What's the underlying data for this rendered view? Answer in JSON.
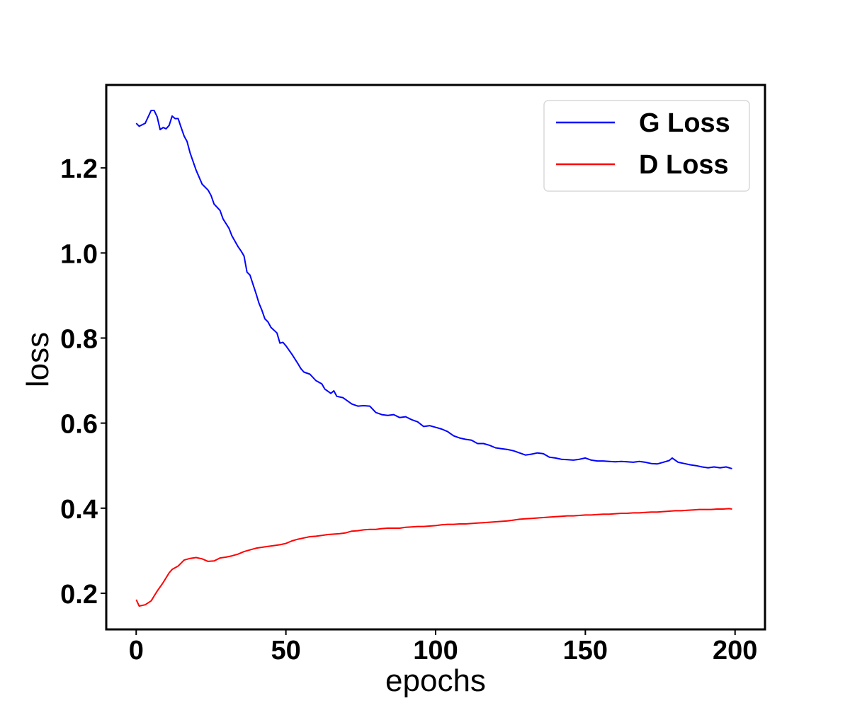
{
  "chart_data": {
    "type": "line",
    "xlabel": "epochs",
    "ylabel": "loss",
    "xlim": [
      -10,
      210
    ],
    "ylim": [
      0.115,
      1.395
    ],
    "xticks": [
      0,
      50,
      100,
      150,
      200
    ],
    "xtick_labels": [
      "0",
      "50",
      "100",
      "150",
      "200"
    ],
    "yticks": [
      0.2,
      0.4,
      0.6,
      0.8,
      1.0,
      1.2
    ],
    "ytick_labels": [
      "0.2",
      "0.4",
      "0.6",
      "0.8",
      "1.0",
      "1.2"
    ],
    "grid": false,
    "legend_position": "top-right",
    "series": [
      {
        "name": "G Loss",
        "color": "#0000ff",
        "points": [
          [
            0,
            1.305
          ],
          [
            1,
            1.298
          ],
          [
            3,
            1.305
          ],
          [
            5,
            1.335
          ],
          [
            6,
            1.335
          ],
          [
            7,
            1.32
          ],
          [
            8,
            1.29
          ],
          [
            9,
            1.295
          ],
          [
            10,
            1.292
          ],
          [
            11,
            1.3
          ],
          [
            12,
            1.322
          ],
          [
            13,
            1.316
          ],
          [
            14,
            1.316
          ],
          [
            15,
            1.295
          ],
          [
            16,
            1.275
          ],
          [
            17,
            1.262
          ],
          [
            18,
            1.235
          ],
          [
            20,
            1.195
          ],
          [
            22,
            1.162
          ],
          [
            24,
            1.148
          ],
          [
            25,
            1.135
          ],
          [
            26,
            1.115
          ],
          [
            28,
            1.1
          ],
          [
            29,
            1.08
          ],
          [
            31,
            1.058
          ],
          [
            32,
            1.04
          ],
          [
            34,
            1.015
          ],
          [
            35,
            1.005
          ],
          [
            36,
            0.993
          ],
          [
            37,
            0.955
          ],
          [
            38,
            0.948
          ],
          [
            40,
            0.905
          ],
          [
            41,
            0.882
          ],
          [
            42,
            0.865
          ],
          [
            43,
            0.845
          ],
          [
            44,
            0.838
          ],
          [
            45,
            0.825
          ],
          [
            47,
            0.812
          ],
          [
            48,
            0.788
          ],
          [
            49,
            0.79
          ],
          [
            50,
            0.782
          ],
          [
            52,
            0.762
          ],
          [
            54,
            0.74
          ],
          [
            55,
            0.728
          ],
          [
            56,
            0.72
          ],
          [
            58,
            0.715
          ],
          [
            60,
            0.7
          ],
          [
            62,
            0.692
          ],
          [
            63,
            0.68
          ],
          [
            65,
            0.67
          ],
          [
            66,
            0.676
          ],
          [
            67,
            0.663
          ],
          [
            69,
            0.66
          ],
          [
            70,
            0.655
          ],
          [
            72,
            0.645
          ],
          [
            74,
            0.64
          ],
          [
            76,
            0.641
          ],
          [
            78,
            0.64
          ],
          [
            80,
            0.625
          ],
          [
            82,
            0.62
          ],
          [
            84,
            0.618
          ],
          [
            86,
            0.62
          ],
          [
            88,
            0.613
          ],
          [
            90,
            0.615
          ],
          [
            92,
            0.608
          ],
          [
            94,
            0.603
          ],
          [
            96,
            0.592
          ],
          [
            98,
            0.594
          ],
          [
            100,
            0.59
          ],
          [
            102,
            0.586
          ],
          [
            104,
            0.58
          ],
          [
            106,
            0.57
          ],
          [
            108,
            0.565
          ],
          [
            110,
            0.562
          ],
          [
            112,
            0.56
          ],
          [
            114,
            0.552
          ],
          [
            116,
            0.552
          ],
          [
            118,
            0.548
          ],
          [
            120,
            0.542
          ],
          [
            122,
            0.54
          ],
          [
            124,
            0.538
          ],
          [
            126,
            0.535
          ],
          [
            128,
            0.53
          ],
          [
            130,
            0.525
          ],
          [
            132,
            0.527
          ],
          [
            134,
            0.53
          ],
          [
            136,
            0.528
          ],
          [
            138,
            0.52
          ],
          [
            140,
            0.518
          ],
          [
            142,
            0.515
          ],
          [
            144,
            0.514
          ],
          [
            146,
            0.513
          ],
          [
            148,
            0.515
          ],
          [
            150,
            0.518
          ],
          [
            152,
            0.513
          ],
          [
            154,
            0.511
          ],
          [
            156,
            0.511
          ],
          [
            158,
            0.51
          ],
          [
            160,
            0.509
          ],
          [
            162,
            0.51
          ],
          [
            164,
            0.509
          ],
          [
            166,
            0.508
          ],
          [
            168,
            0.51
          ],
          [
            170,
            0.508
          ],
          [
            172,
            0.505
          ],
          [
            174,
            0.504
          ],
          [
            176,
            0.508
          ],
          [
            178,
            0.512
          ],
          [
            179,
            0.518
          ],
          [
            181,
            0.508
          ],
          [
            183,
            0.505
          ],
          [
            185,
            0.502
          ],
          [
            187,
            0.5
          ],
          [
            189,
            0.497
          ],
          [
            191,
            0.495
          ],
          [
            193,
            0.497
          ],
          [
            195,
            0.495
          ],
          [
            197,
            0.497
          ],
          [
            199,
            0.493
          ]
        ]
      },
      {
        "name": "D Loss",
        "color": "#ff0000",
        "points": [
          [
            0,
            0.185
          ],
          [
            1,
            0.17
          ],
          [
            3,
            0.173
          ],
          [
            5,
            0.182
          ],
          [
            7,
            0.205
          ],
          [
            9,
            0.225
          ],
          [
            11,
            0.248
          ],
          [
            12,
            0.256
          ],
          [
            14,
            0.264
          ],
          [
            16,
            0.278
          ],
          [
            18,
            0.282
          ],
          [
            20,
            0.284
          ],
          [
            22,
            0.281
          ],
          [
            24,
            0.275
          ],
          [
            26,
            0.276
          ],
          [
            28,
            0.283
          ],
          [
            30,
            0.285
          ],
          [
            32,
            0.288
          ],
          [
            34,
            0.292
          ],
          [
            36,
            0.298
          ],
          [
            38,
            0.302
          ],
          [
            40,
            0.306
          ],
          [
            42,
            0.308
          ],
          [
            44,
            0.31
          ],
          [
            46,
            0.312
          ],
          [
            48,
            0.314
          ],
          [
            50,
            0.317
          ],
          [
            52,
            0.323
          ],
          [
            54,
            0.327
          ],
          [
            56,
            0.33
          ],
          [
            58,
            0.333
          ],
          [
            60,
            0.334
          ],
          [
            62,
            0.336
          ],
          [
            64,
            0.338
          ],
          [
            66,
            0.339
          ],
          [
            68,
            0.34
          ],
          [
            70,
            0.342
          ],
          [
            72,
            0.346
          ],
          [
            74,
            0.347
          ],
          [
            76,
            0.349
          ],
          [
            78,
            0.35
          ],
          [
            80,
            0.35
          ],
          [
            82,
            0.352
          ],
          [
            84,
            0.353
          ],
          [
            86,
            0.353
          ],
          [
            88,
            0.353
          ],
          [
            90,
            0.355
          ],
          [
            92,
            0.356
          ],
          [
            94,
            0.357
          ],
          [
            96,
            0.357
          ],
          [
            98,
            0.358
          ],
          [
            100,
            0.359
          ],
          [
            102,
            0.361
          ],
          [
            104,
            0.362
          ],
          [
            106,
            0.362
          ],
          [
            108,
            0.363
          ],
          [
            110,
            0.363
          ],
          [
            112,
            0.364
          ],
          [
            114,
            0.365
          ],
          [
            116,
            0.366
          ],
          [
            118,
            0.367
          ],
          [
            120,
            0.368
          ],
          [
            122,
            0.369
          ],
          [
            124,
            0.37
          ],
          [
            126,
            0.372
          ],
          [
            128,
            0.374
          ],
          [
            130,
            0.375
          ],
          [
            132,
            0.376
          ],
          [
            134,
            0.377
          ],
          [
            136,
            0.378
          ],
          [
            138,
            0.379
          ],
          [
            140,
            0.38
          ],
          [
            142,
            0.381
          ],
          [
            144,
            0.382
          ],
          [
            146,
            0.382
          ],
          [
            148,
            0.383
          ],
          [
            150,
            0.384
          ],
          [
            152,
            0.384
          ],
          [
            154,
            0.385
          ],
          [
            156,
            0.386
          ],
          [
            158,
            0.386
          ],
          [
            160,
            0.387
          ],
          [
            162,
            0.388
          ],
          [
            164,
            0.388
          ],
          [
            166,
            0.389
          ],
          [
            168,
            0.389
          ],
          [
            170,
            0.39
          ],
          [
            172,
            0.391
          ],
          [
            174,
            0.391
          ],
          [
            176,
            0.392
          ],
          [
            178,
            0.393
          ],
          [
            180,
            0.394
          ],
          [
            182,
            0.394
          ],
          [
            184,
            0.395
          ],
          [
            186,
            0.396
          ],
          [
            188,
            0.397
          ],
          [
            190,
            0.397
          ],
          [
            192,
            0.397
          ],
          [
            194,
            0.398
          ],
          [
            196,
            0.398
          ],
          [
            198,
            0.399
          ],
          [
            199,
            0.398
          ]
        ]
      }
    ]
  }
}
